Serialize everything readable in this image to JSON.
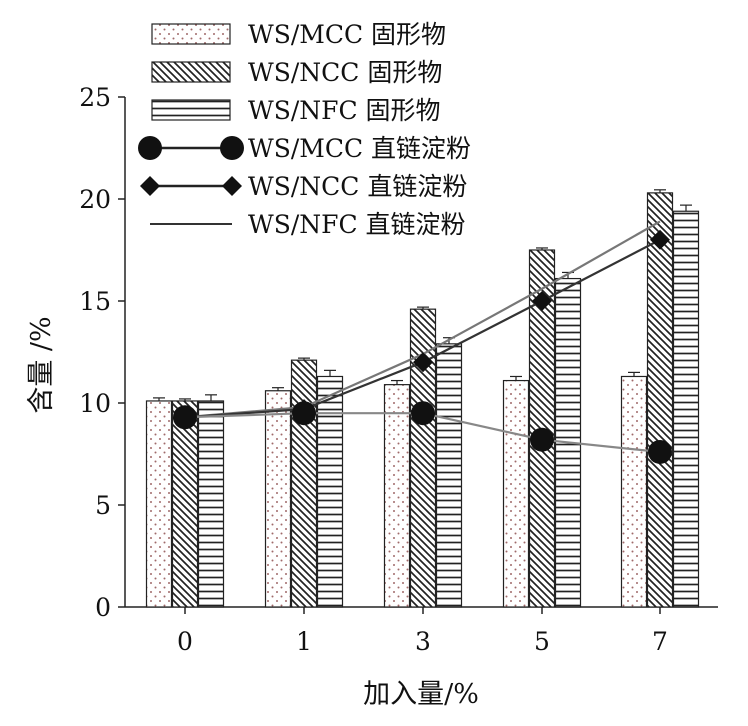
{
  "chart_data": {
    "type": "bar",
    "categories": [
      "0",
      "1",
      "3",
      "5",
      "7"
    ],
    "xlabel": "加入量/%",
    "ylabel": "含量 /%",
    "ylim": [
      0,
      25
    ],
    "yticks": [
      0,
      5,
      10,
      15,
      20,
      25
    ],
    "grid": false,
    "legend_position": "top",
    "bar_series": [
      {
        "name": "WS/MCC 固形物",
        "pattern": "dots",
        "values": [
          10.1,
          10.6,
          10.9,
          11.1,
          11.3
        ],
        "errors": [
          0.15,
          0.15,
          0.2,
          0.2,
          0.2
        ]
      },
      {
        "name": "WS/NCC 固形物",
        "pattern": "diagonal-hatch",
        "values": [
          10.1,
          12.1,
          14.6,
          17.5,
          20.3
        ],
        "errors": [
          0.1,
          0.1,
          0.1,
          0.1,
          0.15
        ]
      },
      {
        "name": "WS/NFC 固形物",
        "pattern": "horizontal-stripes",
        "values": [
          10.1,
          11.3,
          12.9,
          16.1,
          19.4
        ],
        "errors": [
          0.3,
          0.3,
          0.3,
          0.3,
          0.3
        ]
      }
    ],
    "line_series": [
      {
        "name": "WS/MCC 直链淀粉",
        "marker": "circle",
        "color": "#888888",
        "values": [
          9.3,
          9.5,
          9.5,
          8.2,
          7.6
        ]
      },
      {
        "name": "WS/NCC 直链淀粉",
        "marker": "diamond",
        "color": "#333333",
        "values": [
          9.3,
          9.7,
          12.0,
          15.0,
          18.0
        ]
      },
      {
        "name": "WS/NFC 直链淀粉",
        "marker": "none",
        "color": "#777777",
        "values": [
          9.3,
          9.8,
          12.4,
          15.6,
          18.9
        ]
      }
    ]
  }
}
